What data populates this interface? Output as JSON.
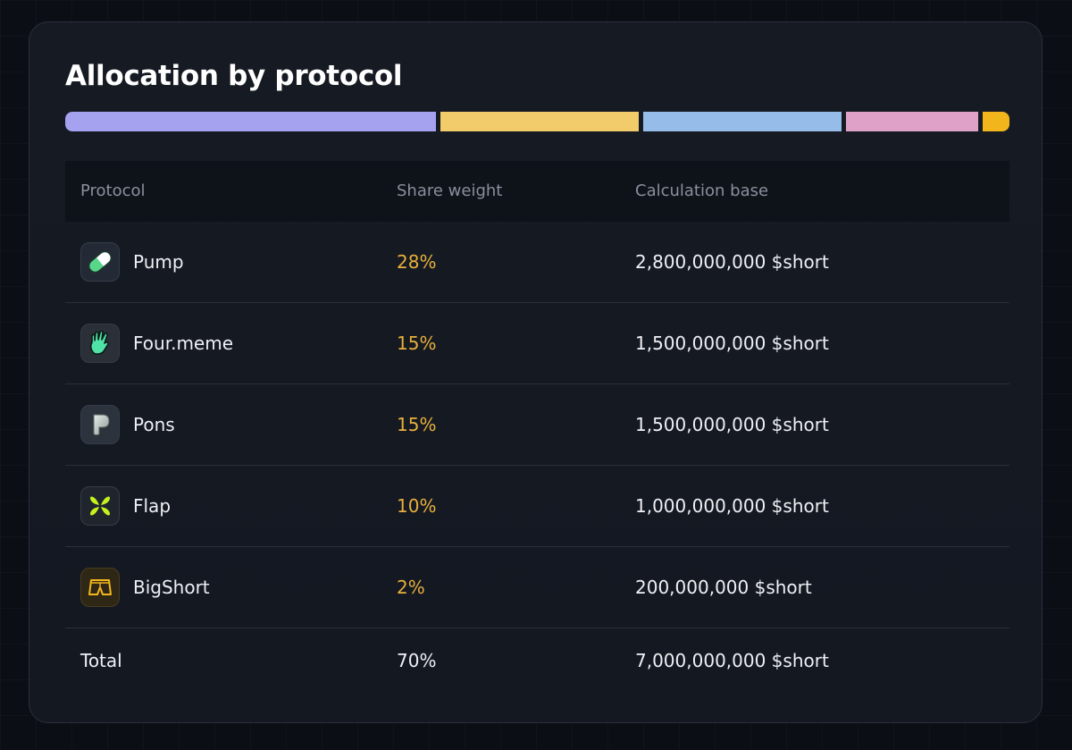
{
  "title": "Allocation by protocol",
  "allocation_bar": {
    "segments": [
      {
        "protocol": "Pump",
        "share": 28,
        "color": "#a5a2ef"
      },
      {
        "protocol": "Four.meme",
        "share": 15,
        "color": "#f2cc6a"
      },
      {
        "protocol": "Pons",
        "share": 15,
        "color": "#96bdea"
      },
      {
        "protocol": "Flap",
        "share": 10,
        "color": "#e0a1c9"
      },
      {
        "protocol": "BigShort",
        "share": 2,
        "color": "#f2b51c"
      }
    ]
  },
  "table": {
    "headers": {
      "protocol": "Protocol",
      "share": "Share weight",
      "base": "Calculation base"
    },
    "rows": [
      {
        "name": "Pump",
        "icon": "pill-icon",
        "share": "28%",
        "base": "2,800,000,000 $short"
      },
      {
        "name": "Four.meme",
        "icon": "hand-icon",
        "share": "15%",
        "base": "1,500,000,000 $short"
      },
      {
        "name": "Pons",
        "icon": "p-letter-icon",
        "share": "15%",
        "base": "1,500,000,000 $short"
      },
      {
        "name": "Flap",
        "icon": "butterfly-icon",
        "share": "10%",
        "base": "1,000,000,000 $short"
      },
      {
        "name": "BigShort",
        "icon": "shorts-icon",
        "share": "2%",
        "base": "200,000,000 $short"
      }
    ],
    "total": {
      "label": "Total",
      "share": "70%",
      "base": "7,000,000,000 $short"
    }
  },
  "colors": {
    "share_text": "#e8b03c",
    "card_background": "#161a23"
  }
}
